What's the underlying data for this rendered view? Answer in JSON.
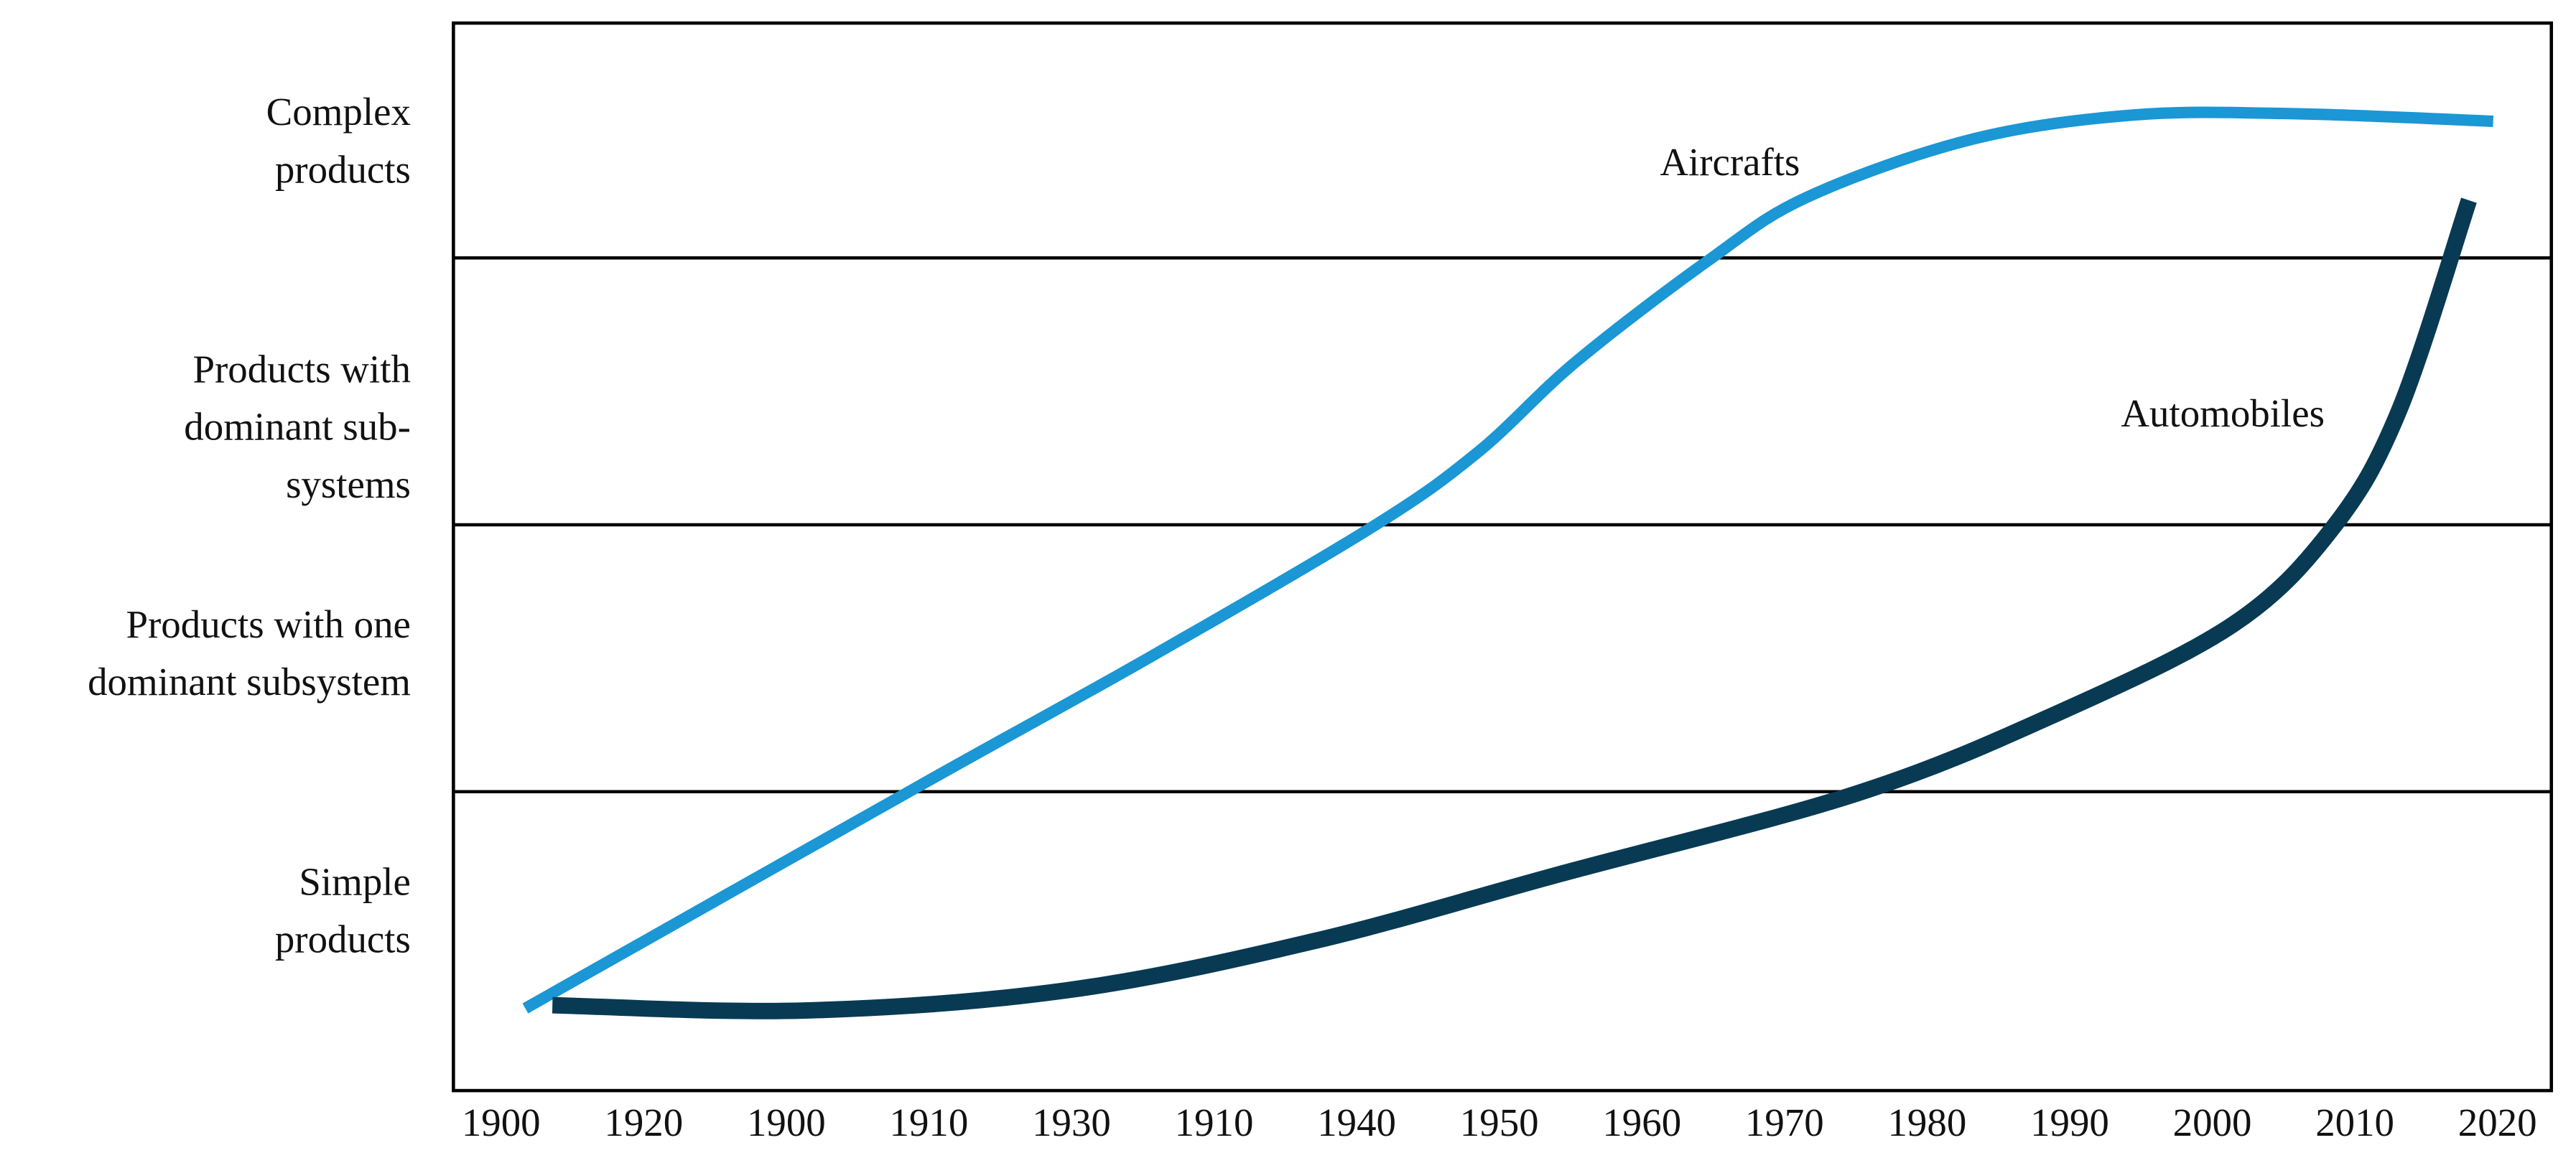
{
  "chart_data": {
    "type": "line",
    "categories": [
      "1900",
      "1920",
      "1900",
      "1910",
      "1930",
      "1910",
      "1940",
      "1950",
      "1960",
      "1970",
      "1980",
      "1990",
      "2000",
      "2010",
      "2020"
    ],
    "ylim": [
      0,
      100
    ],
    "band_boundaries": [
      28,
      53,
      78
    ],
    "band_labels": [
      {
        "value": 16.5,
        "lines": [
          "Simple",
          "products"
        ]
      },
      {
        "value": 40.6,
        "lines": [
          "Products with one",
          "dominant subsystem"
        ]
      },
      {
        "value": 61.8,
        "lines": [
          "Products with",
          "dominant sub-",
          "systems"
        ]
      },
      {
        "value": 88.6,
        "lines": [
          "Complex",
          "products"
        ]
      }
    ],
    "series": [
      {
        "name": "Aircrafts",
        "color": "#1a97d4",
        "x": [
          0.17,
          2.94,
          4.55,
          6.11,
          6.85,
          7.54,
          8.47,
          9.16,
          10.31,
          11.46,
          12.6,
          13.97
        ],
        "values": [
          7.7,
          28.6,
          40.6,
          52.8,
          59.8,
          68.3,
          77.8,
          83.7,
          89.1,
          91.4,
          91.5,
          90.8
        ]
      },
      {
        "name": "Automobiles",
        "color": "#083a54",
        "x": [
          0.36,
          2.13,
          3.97,
          5.7,
          7.43,
          9.5,
          10.89,
          12.15,
          12.85,
          13.31,
          13.8
        ],
        "values": [
          8.0,
          7.5,
          9.4,
          14.0,
          20.3,
          27.8,
          35.2,
          43.7,
          52.8,
          63.7,
          83.4
        ]
      }
    ]
  }
}
